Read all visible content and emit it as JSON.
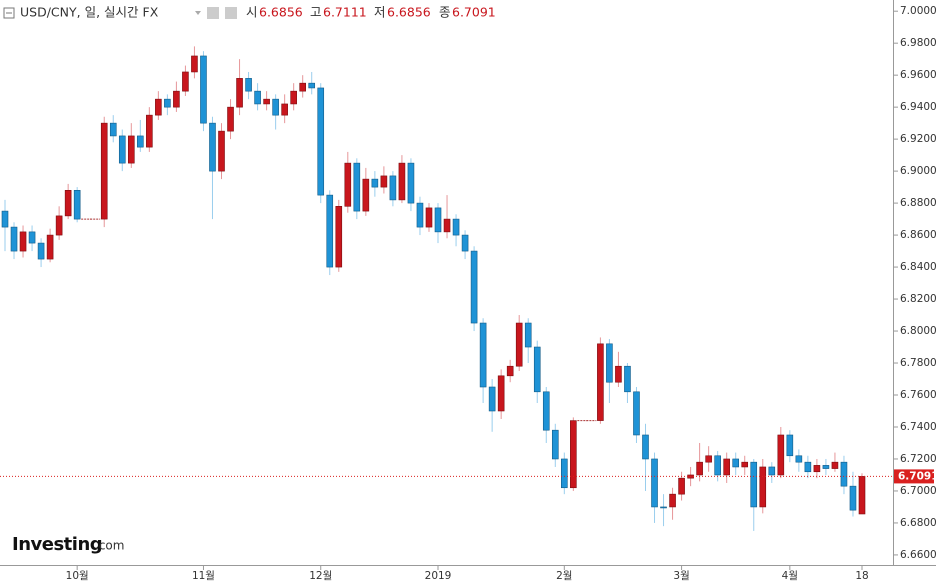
{
  "chart_data": {
    "type": "candlestick",
    "header": {
      "title": "USD/CNY, 일, 실시간 FX",
      "open_label": "시",
      "high_label": "고",
      "low_label": "저",
      "close_label": "종"
    },
    "logo": {
      "brand": "Investing",
      "suffix": ".com"
    },
    "up_color": "#c8161d",
    "down_color": "#1f93d6",
    "last_price_color": "#d9201f",
    "categories": [
      null,
      null,
      null,
      null,
      null,
      null,
      null,
      null,
      "10월",
      null,
      null,
      null,
      null,
      null,
      null,
      null,
      null,
      null,
      null,
      null,
      null,
      null,
      "11월",
      null,
      null,
      null,
      null,
      null,
      null,
      null,
      null,
      null,
      null,
      null,
      null,
      "12월",
      null,
      null,
      null,
      null,
      null,
      null,
      null,
      null,
      null,
      null,
      null,
      null,
      "2019",
      null,
      null,
      null,
      null,
      null,
      null,
      null,
      null,
      null,
      null,
      null,
      null,
      null,
      "2월",
      null,
      null,
      null,
      null,
      null,
      null,
      null,
      null,
      null,
      null,
      null,
      null,
      "3월",
      null,
      null,
      null,
      null,
      null,
      null,
      null,
      null,
      null,
      null,
      null,
      "4월",
      null,
      null,
      null,
      null,
      null,
      null,
      null,
      "18"
    ],
    "open": [
      6.875,
      6.865,
      6.85,
      6.862,
      6.855,
      6.845,
      6.86,
      6.872,
      6.888,
      6.87,
      6.87,
      6.87,
      6.93,
      6.922,
      6.905,
      6.922,
      6.915,
      6.935,
      6.945,
      6.94,
      6.95,
      6.962,
      6.972,
      6.93,
      6.9,
      6.925,
      6.94,
      6.958,
      6.95,
      6.942,
      6.945,
      6.935,
      6.942,
      6.95,
      6.955,
      6.952,
      6.885,
      6.84,
      6.878,
      6.905,
      6.875,
      6.895,
      6.89,
      6.897,
      6.882,
      6.905,
      6.88,
      6.865,
      6.877,
      6.862,
      6.87,
      6.86,
      6.85,
      6.805,
      6.765,
      6.75,
      6.772,
      6.778,
      6.805,
      6.79,
      6.762,
      6.738,
      6.72,
      6.702,
      6.744,
      6.744,
      6.744,
      6.792,
      6.768,
      6.778,
      6.762,
      6.735,
      6.72,
      6.69,
      6.69,
      6.698,
      6.708,
      6.71,
      6.718,
      6.722,
      6.71,
      6.72,
      6.715,
      6.718,
      6.69,
      6.715,
      6.71,
      6.735,
      6.722,
      6.718,
      6.712,
      6.716,
      6.714,
      6.718,
      6.703,
      6.6856
    ],
    "high": [
      6.882,
      6.868,
      6.866,
      6.866,
      6.858,
      6.864,
      6.878,
      6.892,
      6.89,
      6.87,
      6.87,
      6.934,
      6.935,
      6.926,
      6.93,
      6.932,
      6.94,
      6.95,
      6.948,
      6.956,
      6.966,
      6.978,
      6.975,
      6.934,
      6.93,
      6.945,
      6.97,
      6.962,
      6.955,
      6.95,
      6.948,
      6.948,
      6.955,
      6.96,
      6.962,
      6.955,
      6.888,
      6.882,
      6.912,
      6.908,
      6.902,
      6.9,
      6.903,
      6.9,
      6.91,
      6.908,
      6.884,
      6.88,
      6.88,
      6.885,
      6.873,
      6.863,
      6.853,
      6.808,
      6.77,
      6.776,
      6.782,
      6.81,
      6.808,
      6.794,
      6.765,
      6.742,
      6.724,
      6.746,
      6.744,
      6.744,
      6.796,
      6.795,
      6.787,
      6.78,
      6.765,
      6.742,
      6.724,
      6.698,
      6.702,
      6.712,
      6.715,
      6.73,
      6.728,
      6.725,
      6.724,
      6.724,
      6.722,
      6.72,
      6.72,
      6.718,
      6.74,
      6.738,
      6.726,
      6.722,
      6.72,
      6.72,
      6.724,
      6.722,
      6.712,
      6.7111
    ],
    "low": [
      6.85,
      6.845,
      6.846,
      6.85,
      6.84,
      6.843,
      6.857,
      6.87,
      6.868,
      6.87,
      6.87,
      6.865,
      6.918,
      6.9,
      6.902,
      6.912,
      6.912,
      6.932,
      6.935,
      6.937,
      6.947,
      6.958,
      6.925,
      6.87,
      6.895,
      6.92,
      6.935,
      6.945,
      6.938,
      6.938,
      6.926,
      6.93,
      6.938,
      6.946,
      6.948,
      6.88,
      6.835,
      6.837,
      6.874,
      6.87,
      6.872,
      6.884,
      6.886,
      6.878,
      6.88,
      6.875,
      6.86,
      6.862,
      6.855,
      6.858,
      6.853,
      6.845,
      6.8,
      6.755,
      6.737,
      6.745,
      6.768,
      6.775,
      6.78,
      6.755,
      6.73,
      6.715,
      6.698,
      6.7,
      6.744,
      6.744,
      6.742,
      6.755,
      6.765,
      6.755,
      6.73,
      6.7,
      6.68,
      6.678,
      6.682,
      6.694,
      6.703,
      6.706,
      6.712,
      6.706,
      6.705,
      6.71,
      6.71,
      6.675,
      6.686,
      6.705,
      6.708,
      6.718,
      6.712,
      6.708,
      6.708,
      6.71,
      6.712,
      6.698,
      6.684,
      6.6856
    ],
    "close": [
      6.865,
      6.85,
      6.862,
      6.855,
      6.845,
      6.86,
      6.872,
      6.888,
      6.87,
      6.87,
      6.87,
      6.93,
      6.922,
      6.905,
      6.922,
      6.915,
      6.935,
      6.945,
      6.94,
      6.95,
      6.962,
      6.972,
      6.93,
      6.9,
      6.925,
      6.94,
      6.958,
      6.95,
      6.942,
      6.945,
      6.935,
      6.942,
      6.95,
      6.955,
      6.952,
      6.885,
      6.84,
      6.878,
      6.905,
      6.875,
      6.895,
      6.89,
      6.897,
      6.882,
      6.905,
      6.88,
      6.865,
      6.877,
      6.862,
      6.87,
      6.86,
      6.85,
      6.805,
      6.765,
      6.75,
      6.772,
      6.778,
      6.805,
      6.79,
      6.762,
      6.738,
      6.72,
      6.702,
      6.744,
      6.744,
      6.744,
      6.792,
      6.768,
      6.778,
      6.762,
      6.735,
      6.72,
      6.69,
      6.69,
      6.698,
      6.708,
      6.71,
      6.718,
      6.722,
      6.71,
      6.72,
      6.715,
      6.718,
      6.69,
      6.715,
      6.71,
      6.735,
      6.722,
      6.718,
      6.712,
      6.716,
      6.714,
      6.718,
      6.703,
      6.688,
      6.7091
    ],
    "ylim": [
      6.6537,
      7.007
    ],
    "yticks": [
      {
        "value": 6.66,
        "label": "6.6600"
      },
      {
        "value": 6.68,
        "label": "6.6800"
      },
      {
        "value": 6.7,
        "label": "6.7000"
      },
      {
        "value": 6.72,
        "label": "6.7200"
      },
      {
        "value": 6.74,
        "label": "6.7400"
      },
      {
        "value": 6.76,
        "label": "6.7600"
      },
      {
        "value": 6.78,
        "label": "6.7800"
      },
      {
        "value": 6.8,
        "label": "6.8000"
      },
      {
        "value": 6.82,
        "label": "6.8200"
      },
      {
        "value": 6.84,
        "label": "6.8400"
      },
      {
        "value": 6.86,
        "label": "6.8600"
      },
      {
        "value": 6.88,
        "label": "6.8800"
      },
      {
        "value": 6.9,
        "label": "6.9000"
      },
      {
        "value": 6.92,
        "label": "6.9200"
      },
      {
        "value": 6.94,
        "label": "6.9400"
      },
      {
        "value": 6.96,
        "label": "6.9600"
      },
      {
        "value": 6.98,
        "label": "6.9800"
      },
      {
        "value": 7.0,
        "label": "7.0000"
      }
    ],
    "grid": false
  }
}
